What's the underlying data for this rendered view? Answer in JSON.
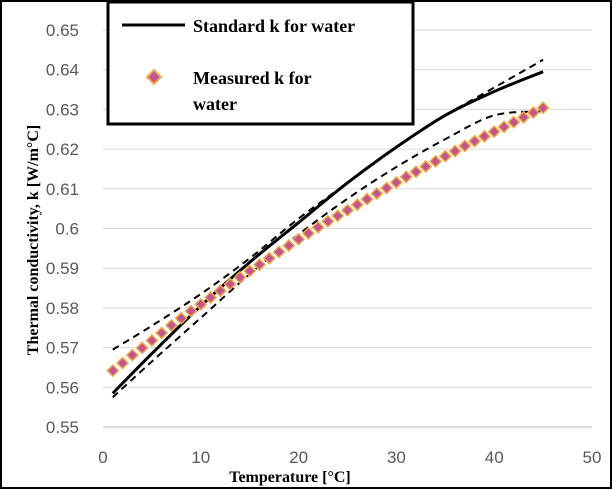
{
  "chart_data": {
    "type": "line",
    "xlabel": "Temperature [°C]",
    "ylabel": "Thermal conductivity, k [W/m°C]",
    "xlim": [
      0,
      50
    ],
    "ylim": [
      0.55,
      0.65
    ],
    "x_ticks": [
      "0",
      "10",
      "20",
      "30",
      "40",
      "50"
    ],
    "y_ticks": [
      "0.55",
      "0.56",
      "0.57",
      "0.58",
      "0.59",
      "0.6",
      "0.61",
      "0.62",
      "0.63",
      "0.64",
      "0.65"
    ],
    "grid": "horizontal",
    "legend_position": "top-left",
    "series": [
      {
        "name": "Standard k for water",
        "style": "solid",
        "color": "#000000",
        "x": [
          1,
          5,
          10,
          15,
          20,
          25,
          30,
          35,
          40,
          45
        ],
        "y": [
          0.5585,
          0.5685,
          0.5805,
          0.5915,
          0.6015,
          0.6115,
          0.6205,
          0.6285,
          0.6345,
          0.6395
        ]
      },
      {
        "name": "Measured k for water",
        "style": "markers",
        "marker": "diamond",
        "color": "#C0558F",
        "edge_color": "#F0A848",
        "x": [
          1,
          2,
          3,
          4,
          5,
          6,
          7,
          8,
          9,
          10,
          11,
          12,
          13,
          14,
          15,
          16,
          17,
          18,
          19,
          20,
          21,
          22,
          23,
          24,
          25,
          26,
          27,
          28,
          29,
          30,
          31,
          32,
          33,
          34,
          35,
          36,
          37,
          38,
          39,
          40,
          41,
          42,
          43,
          44,
          45
        ],
        "y": [
          0.5642,
          0.5661,
          0.5681,
          0.5699,
          0.5718,
          0.5737,
          0.5756,
          0.5774,
          0.5792,
          0.5809,
          0.5826,
          0.5843,
          0.586,
          0.5877,
          0.5893,
          0.5909,
          0.5925,
          0.5941,
          0.5957,
          0.5973,
          0.5988,
          0.6003,
          0.6018,
          0.6032,
          0.6046,
          0.606,
          0.6074,
          0.6088,
          0.6102,
          0.6116,
          0.613,
          0.6143,
          0.6156,
          0.6169,
          0.6182,
          0.6195,
          0.6208,
          0.622,
          0.6232,
          0.6244,
          0.6256,
          0.6268,
          0.628,
          0.6292,
          0.6304
        ]
      },
      {
        "style": "dashed",
        "color": "#000000",
        "x": [
          1,
          5,
          10,
          15,
          20,
          25,
          30,
          35,
          40,
          45
        ],
        "y": [
          0.5695,
          0.5755,
          0.5835,
          0.5925,
          0.6025,
          0.6115,
          0.6205,
          0.6285,
          0.6355,
          0.6425
        ]
      },
      {
        "style": "dashed",
        "color": "#000000",
        "x": [
          1,
          5,
          10,
          15,
          20,
          25,
          30,
          35,
          40,
          45
        ],
        "y": [
          0.5575,
          0.5665,
          0.5775,
          0.5885,
          0.5985,
          0.6075,
          0.6155,
          0.6225,
          0.6285,
          0.6295
        ]
      }
    ]
  }
}
